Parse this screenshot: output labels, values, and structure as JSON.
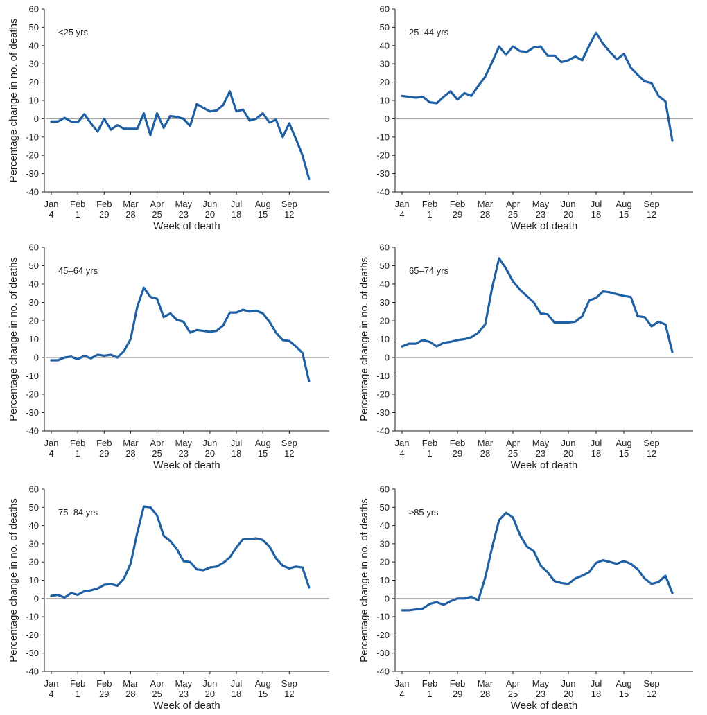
{
  "chart_data": [
    {
      "type": "line",
      "panel_label": "<25 yrs",
      "xlabel": "Week of death",
      "ylabel": "Percentage change in no. of deaths",
      "ylim": [
        -40,
        60
      ],
      "yticks": [
        -40,
        -30,
        -20,
        -10,
        0,
        10,
        20,
        30,
        40,
        50,
        60
      ],
      "xtick_labels": [
        [
          "Jan",
          "4"
        ],
        [
          "Feb",
          "1"
        ],
        [
          "Feb",
          "29"
        ],
        [
          "Mar",
          "28"
        ],
        [
          "Apr",
          "25"
        ],
        [
          "May",
          "23"
        ],
        [
          "Jun",
          "20"
        ],
        [
          "Jul",
          "18"
        ],
        [
          "Aug",
          "15"
        ],
        [
          "Sep",
          "12"
        ]
      ],
      "xlim": [
        1,
        42
      ],
      "reference_line": 0,
      "line_color": "#1f5fa3",
      "grid": false,
      "values": [
        -1.5,
        -1.5,
        0.5,
        -1.5,
        -2,
        2.5,
        -2.5,
        -7,
        0,
        -6,
        -3.5,
        -5.5,
        -5.5,
        -5.5,
        3,
        -9,
        3,
        -5,
        1.5,
        1,
        0,
        -4,
        8,
        6,
        4,
        4.5,
        7.5,
        15,
        4,
        5,
        -1,
        0,
        3,
        -2,
        -0.5,
        -10,
        -2.5,
        -11,
        -20,
        -33
      ]
    },
    {
      "type": "line",
      "panel_label": "25–44 yrs",
      "xlabel": "Week of death",
      "ylabel": "",
      "ylim": [
        -40,
        60
      ],
      "yticks": [
        -40,
        -30,
        -20,
        -10,
        0,
        10,
        20,
        30,
        40,
        50,
        60
      ],
      "xtick_labels": [
        [
          "Jan",
          "4"
        ],
        [
          "Feb",
          "1"
        ],
        [
          "Feb",
          "29"
        ],
        [
          "Mar",
          "28"
        ],
        [
          "Apr",
          "25"
        ],
        [
          "May",
          "23"
        ],
        [
          "Jun",
          "20"
        ],
        [
          "Jul",
          "18"
        ],
        [
          "Aug",
          "15"
        ],
        [
          "Sep",
          "12"
        ]
      ],
      "xlim": [
        1,
        42
      ],
      "reference_line": 0,
      "line_color": "#1f5fa3",
      "grid": false,
      "values": [
        12.5,
        12,
        11.5,
        12,
        9,
        8.5,
        12,
        15,
        10.5,
        14,
        12.5,
        18,
        23,
        31,
        39.5,
        35,
        39.5,
        37,
        36.5,
        39,
        39.5,
        34.5,
        34.5,
        31,
        32,
        34,
        32,
        40,
        47,
        41,
        36.5,
        32.5,
        35.5,
        28,
        24,
        20.5,
        19.5,
        12.5,
        9.5,
        -12
      ]
    },
    {
      "type": "line",
      "panel_label": "45–64 yrs",
      "xlabel": "Week of death",
      "ylabel": "Percentage change in no. of deaths",
      "ylim": [
        -40,
        60
      ],
      "yticks": [
        -40,
        -30,
        -20,
        -10,
        0,
        10,
        20,
        30,
        40,
        50,
        60
      ],
      "xtick_labels": [
        [
          "Jan",
          "4"
        ],
        [
          "Feb",
          "1"
        ],
        [
          "Feb",
          "29"
        ],
        [
          "Mar",
          "28"
        ],
        [
          "Apr",
          "25"
        ],
        [
          "May",
          "23"
        ],
        [
          "Jun",
          "20"
        ],
        [
          "Jul",
          "18"
        ],
        [
          "Aug",
          "15"
        ],
        [
          "Sep",
          "12"
        ]
      ],
      "xlim": [
        1,
        42
      ],
      "reference_line": 0,
      "line_color": "#1f5fa3",
      "grid": false,
      "values": [
        -1.5,
        -1.5,
        0,
        0.5,
        -1,
        1,
        -0.5,
        1.5,
        1,
        1.5,
        0,
        3.5,
        10,
        27.5,
        38,
        33,
        32,
        22,
        24,
        20.5,
        19.5,
        13.5,
        15,
        14.5,
        14,
        14.5,
        17.5,
        24.5,
        24.5,
        26,
        25,
        25.5,
        24,
        19.5,
        13.5,
        9.5,
        9,
        6,
        2.5,
        -13
      ]
    },
    {
      "type": "line",
      "panel_label": "65–74 yrs",
      "xlabel": "Week of death",
      "ylabel": "Percentage change in no. of deaths",
      "ylim": [
        -40,
        60
      ],
      "yticks": [
        -40,
        -30,
        -20,
        -10,
        0,
        10,
        20,
        30,
        40,
        50,
        60
      ],
      "xtick_labels": [
        [
          "Jan",
          "4"
        ],
        [
          "Feb",
          "1"
        ],
        [
          "Feb",
          "29"
        ],
        [
          "Mar",
          "28"
        ],
        [
          "Apr",
          "25"
        ],
        [
          "May",
          "23"
        ],
        [
          "Jun",
          "20"
        ],
        [
          "Jul",
          "18"
        ],
        [
          "Aug",
          "15"
        ],
        [
          "Sep",
          "12"
        ]
      ],
      "xlim": [
        1,
        42
      ],
      "reference_line": 0,
      "line_color": "#1f5fa3",
      "grid": false,
      "values": [
        6,
        7.5,
        7.5,
        9.5,
        8.5,
        6,
        8,
        8.5,
        9.5,
        10,
        11,
        13.5,
        18,
        38,
        54,
        48.5,
        41.5,
        37,
        33.5,
        30,
        24,
        23.5,
        19,
        19,
        19,
        19.5,
        22.5,
        31,
        32.5,
        36,
        35.5,
        34.5,
        33.5,
        33,
        22.5,
        22,
        17,
        19.5,
        18,
        3
      ]
    },
    {
      "type": "line",
      "panel_label": "75–84 yrs",
      "xlabel": "Week of death",
      "ylabel": "Percentage change in no. of deaths",
      "ylim": [
        -40,
        60
      ],
      "yticks": [
        -40,
        -30,
        -20,
        -10,
        0,
        10,
        20,
        30,
        40,
        50,
        60
      ],
      "xtick_labels": [
        [
          "Jan",
          "4"
        ],
        [
          "Feb",
          "1"
        ],
        [
          "Feb",
          "29"
        ],
        [
          "Mar",
          "28"
        ],
        [
          "Apr",
          "25"
        ],
        [
          "May",
          "23"
        ],
        [
          "Jun",
          "20"
        ],
        [
          "Jul",
          "18"
        ],
        [
          "Aug",
          "15"
        ],
        [
          "Sep",
          "12"
        ]
      ],
      "xlim": [
        1,
        42
      ],
      "reference_line": 0,
      "line_color": "#1f5fa3",
      "grid": false,
      "values": [
        1.5,
        2,
        0.5,
        3,
        2,
        4,
        4.5,
        5.5,
        7.5,
        8,
        7,
        11,
        19,
        36,
        50.5,
        50,
        45.5,
        34.5,
        31.5,
        27,
        20.5,
        20,
        16,
        15.5,
        17,
        17.5,
        19.5,
        22.5,
        28,
        32.5,
        32.5,
        33,
        32,
        28.5,
        22,
        18,
        16.5,
        17.5,
        17,
        6
      ]
    },
    {
      "type": "line",
      "panel_label": "≥85 yrs",
      "xlabel": "Week of death",
      "ylabel": "Percentage change in no. of deaths",
      "ylim": [
        -40,
        60
      ],
      "yticks": [
        -40,
        -30,
        -20,
        -10,
        0,
        10,
        20,
        30,
        40,
        50,
        60
      ],
      "xtick_labels": [
        [
          "Jan",
          "4"
        ],
        [
          "Feb",
          "1"
        ],
        [
          "Feb",
          "29"
        ],
        [
          "Mar",
          "28"
        ],
        [
          "Apr",
          "25"
        ],
        [
          "May",
          "23"
        ],
        [
          "Jun",
          "20"
        ],
        [
          "Jul",
          "18"
        ],
        [
          "Aug",
          "15"
        ],
        [
          "Sep",
          "12"
        ]
      ],
      "xlim": [
        1,
        42
      ],
      "reference_line": 0,
      "line_color": "#1f5fa3",
      "grid": false,
      "values": [
        -6.5,
        -6.5,
        -6,
        -5.5,
        -3,
        -2,
        -3.5,
        -1.5,
        0,
        0,
        1,
        -1,
        11.5,
        28,
        43,
        47,
        44.5,
        35,
        28.5,
        26,
        18,
        14.5,
        9.5,
        8.5,
        8,
        11,
        12.5,
        14.5,
        19.5,
        21,
        20,
        19,
        20.5,
        19,
        16,
        11,
        8,
        9,
        12.5,
        3
      ]
    }
  ]
}
